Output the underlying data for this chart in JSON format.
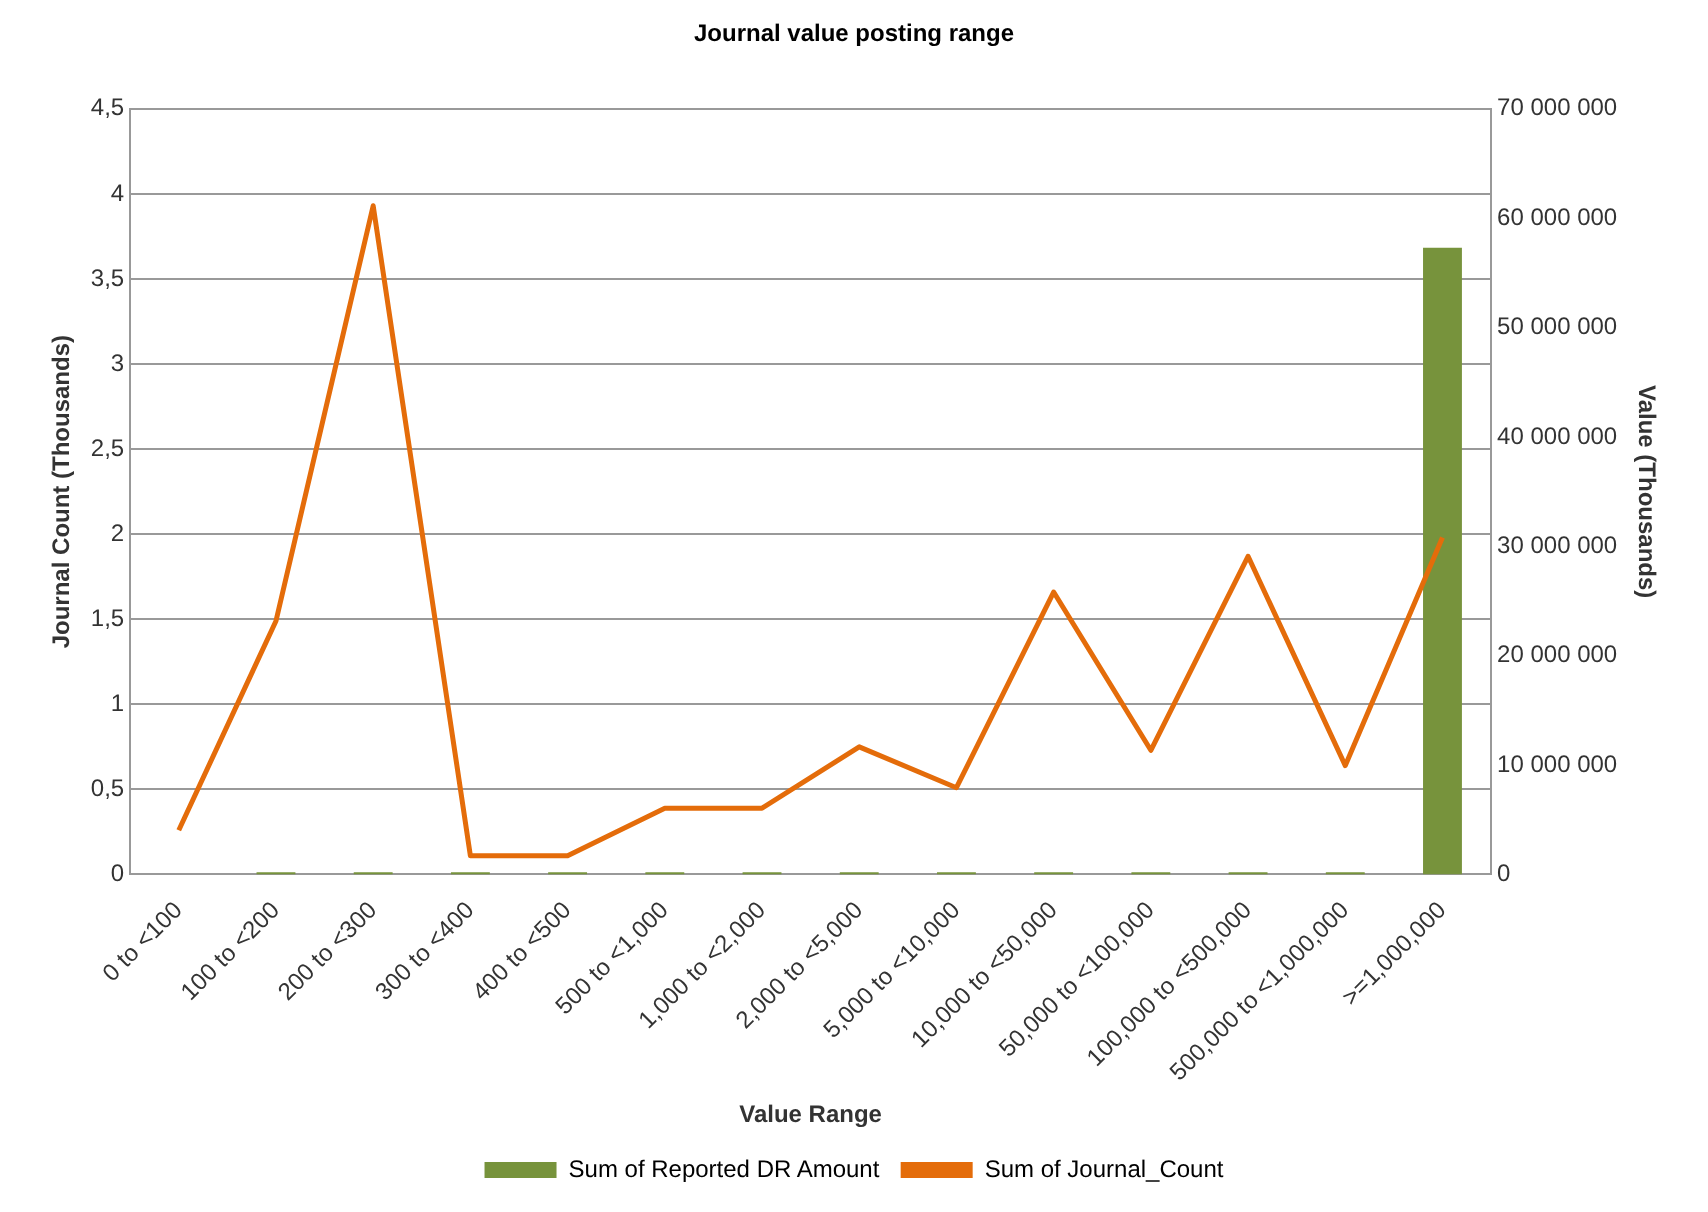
{
  "chart_data": {
    "type": "bar",
    "title": "Journal value posting range",
    "xlabel": "Value Range",
    "ylabel": "Journal Count (Thousands)",
    "y2label": "Value (Thousands)",
    "categories": [
      "0 to <100",
      "100 to <200",
      "200 to <300",
      "300 to <400",
      "400 to <500",
      "500 to <1,000",
      "1,000 to <2,000",
      "2,000 to <5,000",
      "5,000 to <10,000",
      "10,000 to <50,000",
      "50,000 to <100,000",
      "100,000 to <500,000",
      "500,000 to <1,000,000",
      ">=1,000,000"
    ],
    "series": [
      {
        "name": "Sum of Reported DR Amount",
        "axis": "y2",
        "color": "#77933c",
        "values": [
          0,
          200000,
          200000,
          200000,
          200000,
          200000,
          200000,
          200000,
          200000,
          200000,
          200000,
          200000,
          200000,
          57300000
        ]
      },
      {
        "name": "Sum of Journal_Count",
        "type": "line",
        "axis": "y",
        "color": "#e46c0a",
        "values": [
          0.26,
          1.49,
          3.93,
          0.11,
          0.11,
          0.39,
          0.39,
          0.75,
          0.51,
          1.66,
          0.73,
          1.87,
          0.64,
          1.98
        ]
      }
    ],
    "ylim": [
      0,
      4.5
    ],
    "yticks": [
      0,
      {
        "value": 0.5,
        "label": "0,5"
      },
      1,
      {
        "value": 1.5,
        "label": "1,5"
      },
      2,
      {
        "value": 2.5,
        "label": "2,5"
      },
      3,
      {
        "value": 3.5,
        "label": "3,5"
      },
      4,
      {
        "value": 4.5,
        "label": "4,5"
      }
    ],
    "y2lim": [
      0,
      70000000
    ],
    "y2ticks": [
      0,
      {
        "value": 10000000,
        "label": "10 000 000"
      },
      {
        "value": 20000000,
        "label": "20 000 000"
      },
      {
        "value": 30000000,
        "label": "30 000 000"
      },
      {
        "value": 40000000,
        "label": "40 000 000"
      },
      {
        "value": 50000000,
        "label": "50 000 000"
      },
      {
        "value": 60000000,
        "label": "60 000 000"
      },
      {
        "value": 70000000,
        "label": "70 000 000"
      }
    ],
    "grid": "y",
    "legend": "bottom",
    "marker": "none"
  }
}
